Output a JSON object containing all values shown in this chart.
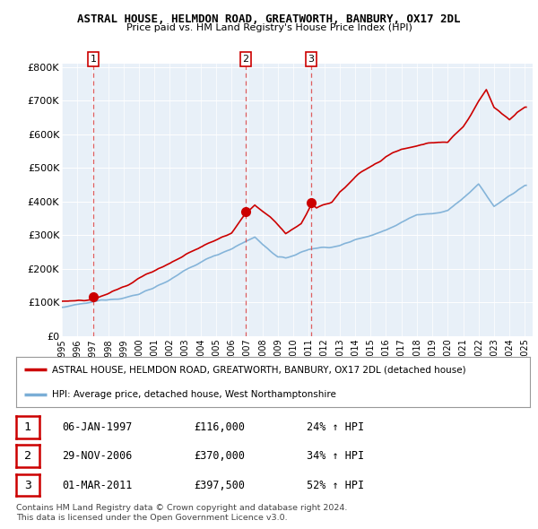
{
  "title1": "ASTRAL HOUSE, HELMDON ROAD, GREATWORTH, BANBURY, OX17 2DL",
  "title2": "Price paid vs. HM Land Registry's House Price Index (HPI)",
  "legend_line1": "ASTRAL HOUSE, HELMDON ROAD, GREATWORTH, BANBURY, OX17 2DL (detached house)",
  "legend_line2": "HPI: Average price, detached house, West Northamptonshire",
  "footer1": "Contains HM Land Registry data © Crown copyright and database right 2024.",
  "footer2": "This data is licensed under the Open Government Licence v3.0.",
  "yticks": [
    0,
    100000,
    200000,
    300000,
    400000,
    500000,
    600000,
    700000,
    800000
  ],
  "ytick_labels": [
    "£0",
    "£100K",
    "£200K",
    "£300K",
    "£400K",
    "£500K",
    "£600K",
    "£700K",
    "£800K"
  ],
  "ylim": [
    0,
    810000
  ],
  "xlim_start": 1995.0,
  "xlim_end": 2025.5,
  "sale_points": [
    {
      "date_year": 1997.04,
      "price": 116000,
      "label": "1"
    },
    {
      "date_year": 2006.91,
      "price": 370000,
      "label": "2"
    },
    {
      "date_year": 2011.16,
      "price": 397500,
      "label": "3"
    }
  ],
  "table_rows": [
    {
      "label": "1",
      "date": "06-JAN-1997",
      "price": "£116,000",
      "hpi": "24% ↑ HPI"
    },
    {
      "label": "2",
      "date": "29-NOV-2006",
      "price": "£370,000",
      "hpi": "34% ↑ HPI"
    },
    {
      "label": "3",
      "date": "01-MAR-2011",
      "price": "£397,500",
      "hpi": "52% ↑ HPI"
    }
  ],
  "red_line_color": "#cc0000",
  "blue_line_color": "#7aaed6",
  "plot_bg": "#e8f0f8",
  "dashed_color": "#dd4444"
}
